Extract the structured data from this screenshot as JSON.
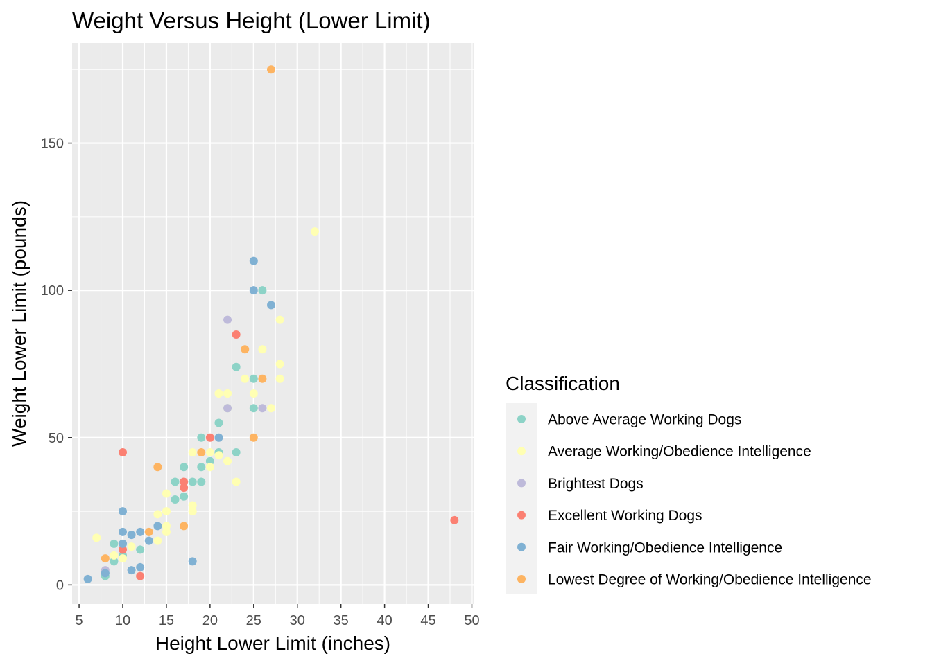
{
  "chart_data": {
    "type": "scatter",
    "title": "Weight Versus Height (Lower Limit)",
    "xlabel": "Height Lower Limit (inches)",
    "ylabel": "Weight Lower Limit (pounds)",
    "xlim": [
      4.2,
      50.2
    ],
    "ylim": [
      -6.5,
      184
    ],
    "xticks": [
      5,
      10,
      15,
      20,
      25,
      30,
      35,
      40,
      45,
      50
    ],
    "yticks": [
      0,
      50,
      100,
      150
    ],
    "grid": true,
    "legend": {
      "title": "Classification",
      "position": "right"
    },
    "series": [
      {
        "name": "Above Average Working Dogs",
        "color": "#8DD3C7",
        "points": [
          [
            8,
            3
          ],
          [
            8,
            4
          ],
          [
            9,
            8
          ],
          [
            9,
            14
          ],
          [
            10,
            14
          ],
          [
            10,
            10
          ],
          [
            12,
            12
          ],
          [
            16,
            35
          ],
          [
            16,
            29
          ],
          [
            17,
            40
          ],
          [
            17,
            30
          ],
          [
            18,
            35
          ],
          [
            19,
            50
          ],
          [
            19,
            40
          ],
          [
            19,
            35
          ],
          [
            20,
            42
          ],
          [
            21,
            55
          ],
          [
            21,
            45
          ],
          [
            23,
            74
          ],
          [
            23,
            45
          ],
          [
            25,
            70
          ],
          [
            25,
            60
          ],
          [
            26,
            100
          ],
          [
            22,
            60
          ]
        ]
      },
      {
        "name": "Average Working/Obedience Intelligence",
        "color": "#FFFFB3",
        "points": [
          [
            7,
            16
          ],
          [
            9,
            10
          ],
          [
            10,
            9
          ],
          [
            11,
            13
          ],
          [
            14,
            24
          ],
          [
            14,
            15
          ],
          [
            15,
            31
          ],
          [
            15,
            25
          ],
          [
            15,
            20
          ],
          [
            15,
            18
          ],
          [
            18,
            45
          ],
          [
            18,
            27
          ],
          [
            18,
            25
          ],
          [
            19,
            45
          ],
          [
            20,
            45
          ],
          [
            20,
            40
          ],
          [
            21,
            65
          ],
          [
            21,
            44
          ],
          [
            22,
            65
          ],
          [
            22,
            60
          ],
          [
            22,
            42
          ],
          [
            23,
            35
          ],
          [
            24,
            70
          ],
          [
            25,
            65
          ],
          [
            26,
            80
          ],
          [
            27,
            60
          ],
          [
            28,
            90
          ],
          [
            28,
            75
          ],
          [
            28,
            70
          ],
          [
            32,
            120
          ]
        ]
      },
      {
        "name": "Brightest Dogs",
        "color": "#BEBADA",
        "points": [
          [
            8,
            5
          ],
          [
            22,
            90
          ],
          [
            22,
            60
          ],
          [
            26,
            60
          ]
        ]
      },
      {
        "name": "Excellent Working Dogs",
        "color": "#FB8072",
        "points": [
          [
            10,
            45
          ],
          [
            10,
            12
          ],
          [
            12,
            3
          ],
          [
            17,
            35
          ],
          [
            17,
            33
          ],
          [
            20,
            50
          ],
          [
            23,
            85
          ],
          [
            48,
            22
          ]
        ]
      },
      {
        "name": "Fair Working/Obedience Intelligence",
        "color": "#80B1D3",
        "points": [
          [
            6,
            2
          ],
          [
            8,
            4
          ],
          [
            10,
            25
          ],
          [
            10,
            18
          ],
          [
            10,
            14
          ],
          [
            11,
            17
          ],
          [
            11,
            5
          ],
          [
            12,
            18
          ],
          [
            12,
            6
          ],
          [
            13,
            15
          ],
          [
            14,
            20
          ],
          [
            18,
            8
          ],
          [
            21,
            50
          ],
          [
            25,
            110
          ],
          [
            25,
            100
          ],
          [
            27,
            95
          ]
        ]
      },
      {
        "name": "Lowest Degree of Working/Obedience Intelligence",
        "color": "#FDB462",
        "points": [
          [
            8,
            9
          ],
          [
            13,
            18
          ],
          [
            14,
            40
          ],
          [
            17,
            20
          ],
          [
            19,
            45
          ],
          [
            24,
            80
          ],
          [
            25,
            50
          ],
          [
            26,
            70
          ],
          [
            27,
            175
          ]
        ]
      }
    ]
  }
}
